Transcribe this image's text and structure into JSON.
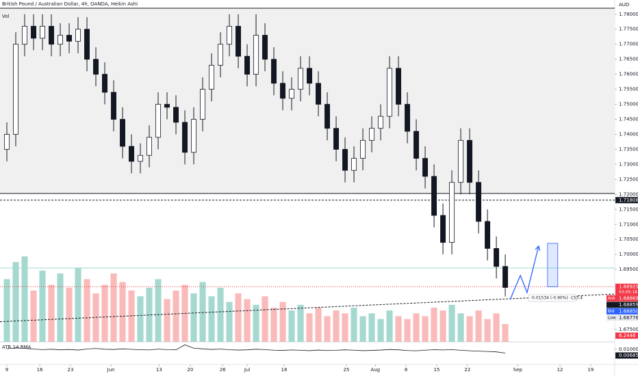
{
  "chart_data": {
    "type": "candlestick",
    "title": "British Pound / Australian Dollar, 4h, OANDA, Heikin Ashi",
    "volume_label": "Vol",
    "currency": "AUD",
    "atr_label": "ATR 14 RMA",
    "xlim": [
      -1.54,
      136.6
    ],
    "ylim": [
      1.6709,
      1.782
    ],
    "yticks": [
      {
        "value": 1.78,
        "label": "1.78000"
      },
      {
        "value": 1.775,
        "label": "1.77500"
      },
      {
        "value": 1.77,
        "label": "1.77000"
      },
      {
        "value": 1.765,
        "label": "1.76500"
      },
      {
        "value": 1.76,
        "label": "1.76000"
      },
      {
        "value": 1.755,
        "label": "1.75500"
      },
      {
        "value": 1.75,
        "label": "1.75000"
      },
      {
        "value": 1.745,
        "label": "1.74500"
      },
      {
        "value": 1.74,
        "label": "1.74000"
      },
      {
        "value": 1.735,
        "label": "1.73500"
      },
      {
        "value": 1.73,
        "label": "1.73000"
      },
      {
        "value": 1.725,
        "label": "1.72500"
      },
      {
        "value": 1.72,
        "label": "1.72000"
      },
      {
        "value": 1.715,
        "label": "1.71500"
      },
      {
        "value": 1.71,
        "label": "1.71000"
      },
      {
        "value": 1.705,
        "label": "1.70500"
      },
      {
        "value": 1.7,
        "label": "1.70000"
      },
      {
        "value": 1.695,
        "label": "1.69500"
      },
      {
        "value": 1.675,
        "label": "1.67500"
      }
    ],
    "xticks": [
      {
        "value": 0,
        "label": "9"
      },
      {
        "value": 7.4,
        "label": "16"
      },
      {
        "value": 14.3,
        "label": "23"
      },
      {
        "value": 23.4,
        "label": "Jun"
      },
      {
        "value": 34.2,
        "label": "13"
      },
      {
        "value": 41.2,
        "label": "20"
      },
      {
        "value": 48.5,
        "label": "26"
      },
      {
        "value": 54,
        "label": "Jul"
      },
      {
        "value": 62.3,
        "label": "18"
      },
      {
        "value": 76.3,
        "label": "25"
      },
      {
        "value": 82.8,
        "label": "Aug"
      },
      {
        "value": 89.7,
        "label": "8"
      },
      {
        "value": 96.6,
        "label": "15"
      },
      {
        "value": 103.5,
        "label": "22"
      },
      {
        "value": 114.8,
        "label": "Sep"
      },
      {
        "value": 124.3,
        "label": "12"
      },
      {
        "value": 131.2,
        "label": "19"
      }
    ],
    "x": [
      0,
      2,
      4,
      6,
      8,
      10,
      12,
      14,
      16,
      18,
      20,
      22,
      24,
      26,
      28,
      30,
      32,
      34,
      36,
      38,
      40,
      42,
      44,
      46,
      48,
      50,
      52,
      54,
      56,
      58,
      60,
      62,
      64,
      66,
      68,
      70,
      72,
      74,
      76,
      78,
      80,
      82,
      84,
      86,
      88,
      90,
      92,
      94,
      96,
      98,
      100,
      102,
      104,
      106,
      108,
      110,
      112
    ],
    "open": [
      1.735,
      1.74,
      1.77,
      1.776,
      1.772,
      1.776,
      1.77,
      1.773,
      1.771,
      1.775,
      1.765,
      1.76,
      1.754,
      1.745,
      1.736,
      1.731,
      1.733,
      1.739,
      1.75,
      1.749,
      1.744,
      1.734,
      1.745,
      1.755,
      1.763,
      1.77,
      1.776,
      1.766,
      1.76,
      1.773,
      1.765,
      1.757,
      1.752,
      1.755,
      1.762,
      1.757,
      1.75,
      1.742,
      1.735,
      1.728,
      1.732,
      1.738,
      1.742,
      1.746,
      1.762,
      1.75,
      1.741,
      1.732,
      1.726,
      1.713,
      1.704,
      1.724,
      1.738,
      1.724,
      1.711,
      1.702,
      1.696
    ],
    "high": [
      1.744,
      1.774,
      1.78,
      1.78,
      1.78,
      1.78,
      1.777,
      1.777,
      1.779,
      1.779,
      1.769,
      1.764,
      1.758,
      1.749,
      1.74,
      1.737,
      1.743,
      1.754,
      1.754,
      1.753,
      1.748,
      1.749,
      1.759,
      1.767,
      1.774,
      1.78,
      1.78,
      1.77,
      1.78,
      1.777,
      1.769,
      1.761,
      1.759,
      1.766,
      1.766,
      1.761,
      1.754,
      1.746,
      1.739,
      1.736,
      1.742,
      1.746,
      1.75,
      1.766,
      1.766,
      1.754,
      1.745,
      1.736,
      1.73,
      1.717,
      1.728,
      1.742,
      1.742,
      1.728,
      1.715,
      1.706,
      1.7
    ],
    "low": [
      1.731,
      1.736,
      1.766,
      1.768,
      1.768,
      1.766,
      1.766,
      1.767,
      1.767,
      1.761,
      1.756,
      1.75,
      1.741,
      1.732,
      1.727,
      1.727,
      1.729,
      1.735,
      1.745,
      1.74,
      1.73,
      1.73,
      1.741,
      1.751,
      1.759,
      1.766,
      1.762,
      1.756,
      1.756,
      1.761,
      1.753,
      1.748,
      1.748,
      1.751,
      1.753,
      1.746,
      1.738,
      1.731,
      1.724,
      1.724,
      1.728,
      1.734,
      1.738,
      1.742,
      1.746,
      1.737,
      1.728,
      1.722,
      1.709,
      1.7,
      1.7,
      1.72,
      1.72,
      1.707,
      1.698,
      1.692,
      1.686
    ],
    "close": [
      1.74,
      1.77,
      1.776,
      1.772,
      1.776,
      1.77,
      1.773,
      1.771,
      1.775,
      1.765,
      1.76,
      1.754,
      1.745,
      1.736,
      1.731,
      1.733,
      1.739,
      1.75,
      1.749,
      1.744,
      1.734,
      1.745,
      1.755,
      1.763,
      1.77,
      1.776,
      1.766,
      1.76,
      1.773,
      1.765,
      1.757,
      1.752,
      1.755,
      1.762,
      1.757,
      1.75,
      1.742,
      1.735,
      1.728,
      1.732,
      1.738,
      1.742,
      1.746,
      1.762,
      1.75,
      1.741,
      1.732,
      1.726,
      1.713,
      1.704,
      1.724,
      1.738,
      1.724,
      1.711,
      1.702,
      1.696,
      1.689
    ],
    "up_color": "#ffffff",
    "down_color": "#131722",
    "volume": [
      22,
      28,
      30,
      18,
      25,
      20,
      24,
      19,
      26,
      22,
      17,
      20,
      24,
      21,
      18,
      16,
      19,
      22,
      15,
      18,
      20,
      17,
      21,
      16,
      19,
      14,
      17,
      15,
      13,
      16,
      12,
      14,
      11,
      13,
      10,
      12,
      9,
      11,
      10,
      12,
      9,
      10,
      8,
      11,
      9,
      8,
      10,
      9,
      12,
      11,
      13,
      10,
      9,
      11,
      8,
      10,
      6.2446
    ],
    "volume_value_label": "6.2446",
    "volume_up_color": "#f7a9a7",
    "volume_down_color": "#8ed0c4",
    "atr": [
      0.0105,
      0.0112,
      0.0108,
      0.0102,
      0.0098,
      0.0101,
      0.0096,
      0.0099,
      0.0094,
      0.0103,
      0.0107,
      0.0101,
      0.0099,
      0.0104,
      0.01,
      0.0097,
      0.0095,
      0.0102,
      0.0098,
      0.0096,
      0.0138,
      0.011,
      0.0104,
      0.0099,
      0.0102,
      0.0097,
      0.0094,
      0.0096,
      0.0101,
      0.0098,
      0.0093,
      0.0091,
      0.0095,
      0.0092,
      0.0089,
      0.0094,
      0.009,
      0.0092,
      0.0096,
      0.0093,
      0.0089,
      0.0091,
      0.0094,
      0.0099,
      0.0096,
      0.009,
      0.0088,
      0.0093,
      0.0097,
      0.0095,
      0.0098,
      0.0092,
      0.0088,
      0.0085,
      0.0082,
      0.0079,
      0.00685
    ],
    "atr_value_label": "0.00685",
    "atr_ylim": [
      -0.0026,
      0.0163
    ],
    "atr_yticks": [
      {
        "value": 0.01,
        "label": "0.01000"
      }
    ],
    "zone": {
      "top": 1.782,
      "bottom": 1.7203
    },
    "resistance": {
      "value": 1.71808,
      "label": "1.71808"
    },
    "last_price": {
      "value": 1.68925,
      "label": "1.68925",
      "countdown": "03:05:18"
    },
    "support_line": 1.6955,
    "trendline": [
      [
        -1.54,
        1.6776
      ],
      [
        136.6,
        1.6868
      ]
    ],
    "projection": [
      [
        113.1,
        1.685
      ],
      [
        115.4,
        1.693
      ],
      [
        116.9,
        1.6873
      ],
      [
        119.5,
        1.7028
      ]
    ],
    "target_box": {
      "x": [
        121.5,
        123.8
      ],
      "top": 1.7037,
      "bottom": 1.68925
    },
    "measure_label": "-0.01534 (-0.90%) -153.4",
    "quotes": [
      {
        "name": "Ask",
        "value": 1.68869,
        "label": "1.68869",
        "color": "#f23645"
      },
      {
        "name": "",
        "value": 1.68859,
        "label": "1.68859",
        "color": "#131722"
      },
      {
        "name": "Bid",
        "value": 1.6885,
        "label": "1.68850",
        "color": "#2962ff"
      },
      {
        "name": "Low",
        "value": 1.68776,
        "label": "1.68776",
        "color": "#e8eaf0"
      }
    ]
  }
}
